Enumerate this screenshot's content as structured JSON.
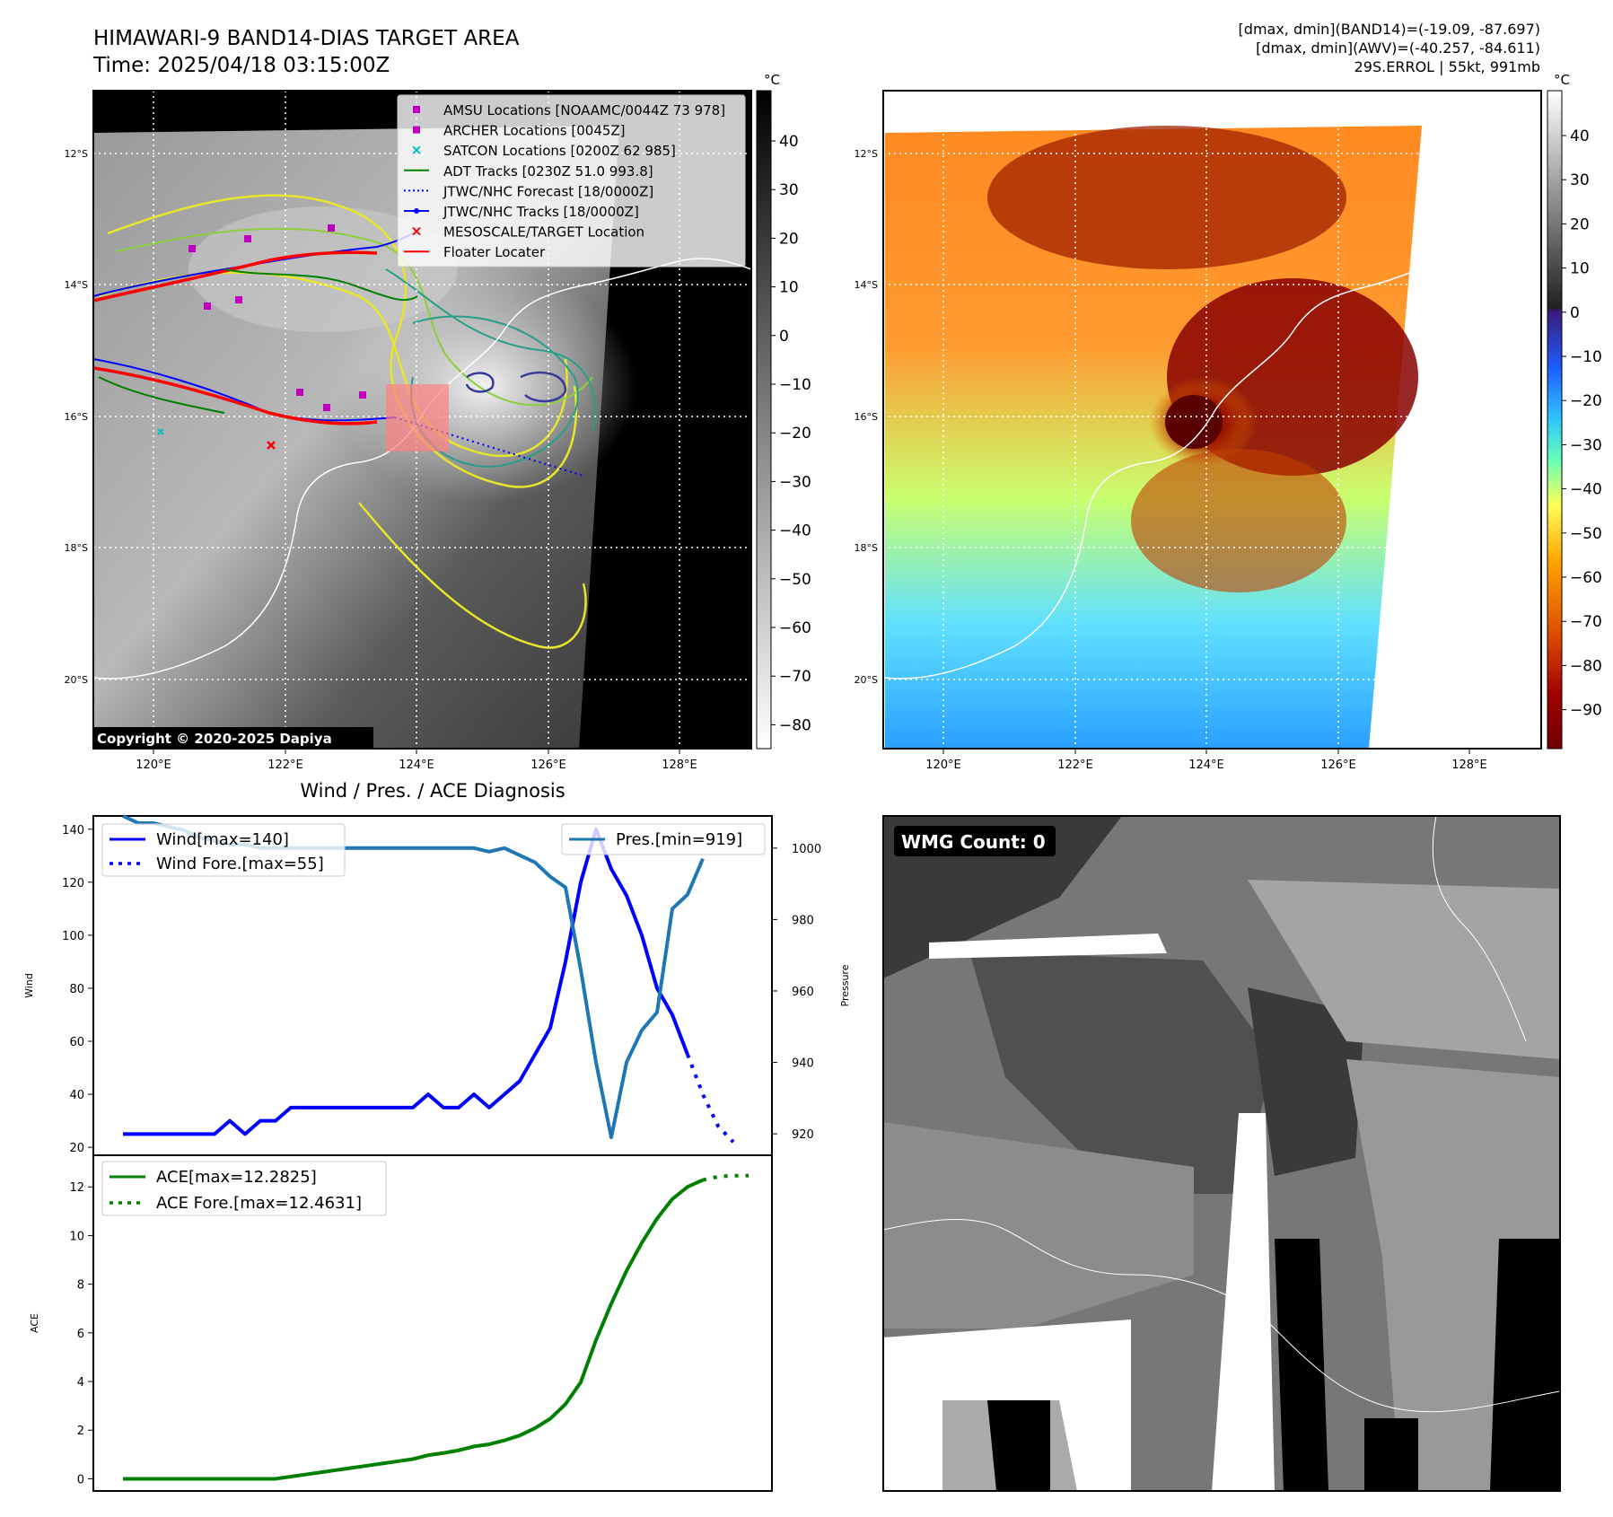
{
  "header": {
    "title_line1": "HIMAWARI-9 BAND14-DIAS TARGET AREA",
    "title_line2": "Time: 2025/04/18 03:15:00Z",
    "info_line1": "[dmax, dmin](BAND14)=(-19.09, -87.697)",
    "info_line2": "[dmax, dmin](AWV)=(-40.257, -84.611)",
    "info_line3": "29S.ERROL | 55kt, 991mb"
  },
  "map": {
    "lon_ticks": [
      "120°E",
      "122°E",
      "124°E",
      "126°E",
      "128°E"
    ],
    "lat_ticks": [
      "12°S",
      "14°S",
      "16°S",
      "18°S",
      "20°S"
    ],
    "copyright": "Copyright © 2020-2025 Dapiya",
    "colorbar_unit": "°C",
    "colorbar_left_ticks": [
      "40",
      "30",
      "20",
      "10",
      "0",
      "−10",
      "−20",
      "−30",
      "−40",
      "−50",
      "−60",
      "−70",
      "−80"
    ],
    "colorbar_right_ticks": [
      "40",
      "30",
      "20",
      "10",
      "0",
      "−10",
      "−20",
      "−30",
      "−40",
      "−50",
      "−60",
      "−70",
      "−80",
      "−90"
    ],
    "legend": [
      {
        "label": "AMSU Locations [NOAAMC/0044Z 73 978]",
        "color": "#bf00bf",
        "marker": "square"
      },
      {
        "label": "ARCHER Locations [0045Z]",
        "color": "#bf00bf",
        "marker": "square"
      },
      {
        "label": "SATCON Locations [0200Z 62 985]",
        "color": "#00bfbf",
        "marker": "x"
      },
      {
        "label": "ADT Tracks [0230Z 51.0 993.8]",
        "color": "#008000",
        "marker": "line"
      },
      {
        "label": "JTWC/NHC Forecast [18/0000Z]",
        "color": "#0000ff",
        "marker": "dotted"
      },
      {
        "label": "JTWC/NHC Tracks [18/0000Z]",
        "color": "#0000ff",
        "marker": "line-dot"
      },
      {
        "label": "MESOSCALE/TARGET Location",
        "color": "#ff0000",
        "marker": "x"
      },
      {
        "label": "Floater Locater",
        "color": "#ff0000",
        "marker": "line"
      }
    ]
  },
  "wmg": {
    "label": "WMG Count: 0"
  },
  "chart_data": [
    {
      "type": "line",
      "title": "Wind / Pres. / ACE Diagnosis",
      "ylabel": "Wind",
      "ylim": [
        17,
        145
      ],
      "y_ticks": [
        20,
        40,
        60,
        80,
        100,
        120,
        140
      ],
      "series": [
        {
          "name": "Wind[max=140]",
          "color": "#0000ff",
          "style": "solid",
          "values": [
            25,
            25,
            25,
            25,
            25,
            25,
            25,
            30,
            25,
            30,
            30,
            35,
            35,
            35,
            35,
            35,
            35,
            35,
            35,
            35,
            40,
            35,
            35,
            40,
            35,
            40,
            45,
            55,
            65,
            90,
            120,
            140,
            125,
            115,
            100,
            80,
            70,
            55
          ]
        },
        {
          "name": "Wind Fore.[max=55]",
          "color": "#0000ff",
          "style": "dotted",
          "start_index": 37,
          "values": [
            55,
            40,
            28,
            22
          ]
        }
      ]
    },
    {
      "type": "line",
      "ylabel": "Pressure",
      "ylim": [
        914,
        1009
      ],
      "y_ticks": [
        920,
        940,
        960,
        980,
        1000
      ],
      "series": [
        {
          "name": "Pres.[min=919]",
          "color": "#1f77b4",
          "style": "solid",
          "values": [
            1009,
            1007,
            1007,
            1006,
            1005,
            1003,
            1002,
            1001,
            1001,
            1000,
            1000,
            1000,
            1000,
            1000,
            1000,
            1000,
            1000,
            1000,
            1000,
            1000,
            1000,
            1000,
            1000,
            1000,
            999,
            1000,
            998,
            996,
            992,
            989,
            966,
            940,
            919,
            940,
            949,
            954,
            983,
            987,
            997
          ]
        }
      ]
    },
    {
      "type": "line",
      "ylabel": "ACE",
      "ylim": [
        -0.5,
        13.3
      ],
      "y_ticks": [
        0,
        2,
        4,
        6,
        8,
        10,
        12
      ],
      "series": [
        {
          "name": "ACE[max=12.2825]",
          "color": "#008000",
          "style": "solid",
          "values": [
            0,
            0,
            0,
            0,
            0,
            0,
            0,
            0,
            0,
            0,
            0,
            0.09,
            0.18,
            0.27,
            0.36,
            0.45,
            0.54,
            0.63,
            0.72,
            0.81,
            0.97,
            1.06,
            1.17,
            1.33,
            1.42,
            1.58,
            1.78,
            2.08,
            2.47,
            3.07,
            3.97,
            5.7,
            7.2,
            8.55,
            9.7,
            10.7,
            11.5,
            12.0,
            12.2825
          ]
        },
        {
          "name": "ACE Fore.[max=12.4631]",
          "color": "#008000",
          "style": "dotted",
          "start_index": 38,
          "values": [
            12.2825,
            12.42,
            12.46,
            12.4631
          ]
        }
      ]
    }
  ]
}
